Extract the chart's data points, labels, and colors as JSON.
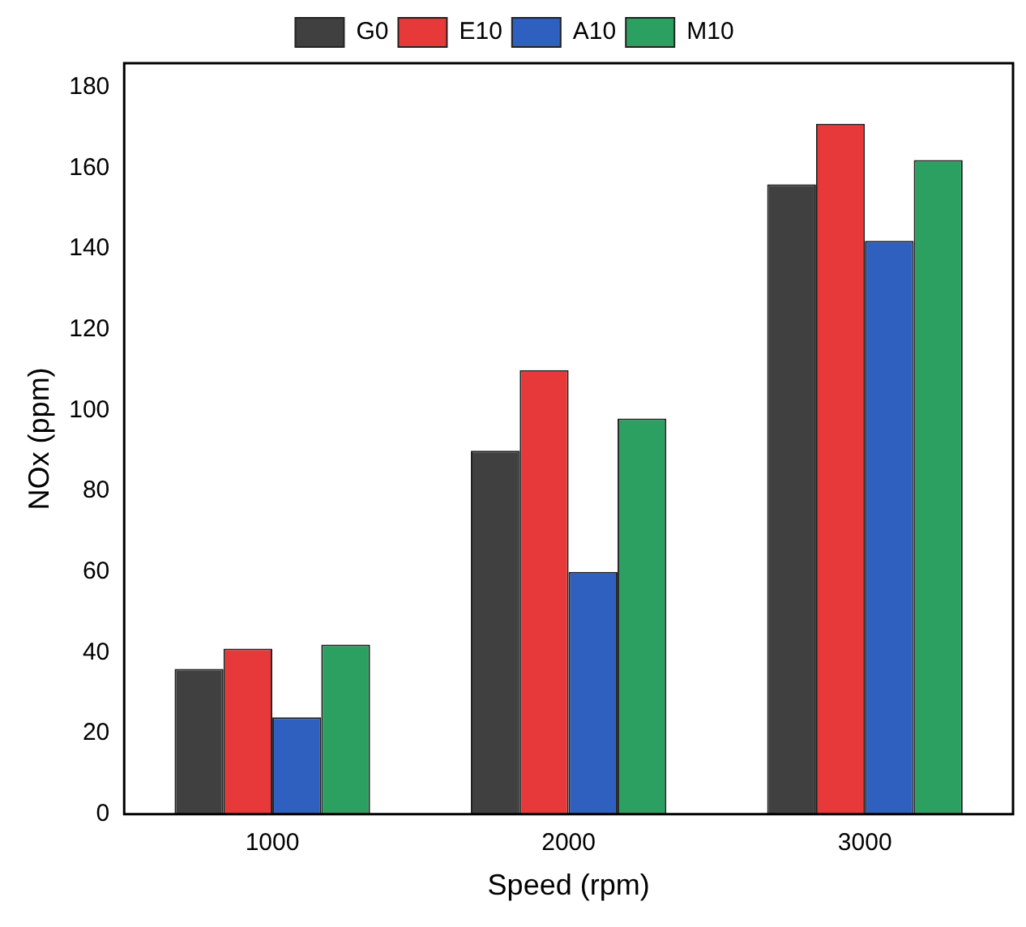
{
  "chart_data": {
    "type": "bar",
    "xlabel": "Speed (rpm)",
    "ylabel": "NOx (ppm)",
    "categories": [
      "1000",
      "2000",
      "3000"
    ],
    "series": [
      {
        "name": "G0",
        "color": "#404040",
        "values": [
          36,
          90,
          156
        ]
      },
      {
        "name": "E10",
        "color": "#e8393a",
        "values": [
          41,
          110,
          171
        ]
      },
      {
        "name": "A10",
        "color": "#2f5fbf",
        "values": [
          24,
          60,
          142
        ]
      },
      {
        "name": "M10",
        "color": "#2ca060",
        "values": [
          42,
          98,
          162
        ]
      }
    ],
    "ylim": [
      0,
      186
    ],
    "yticks": [
      0,
      20,
      40,
      60,
      80,
      100,
      120,
      140,
      160,
      180
    ],
    "grid": false,
    "legend": "top"
  }
}
